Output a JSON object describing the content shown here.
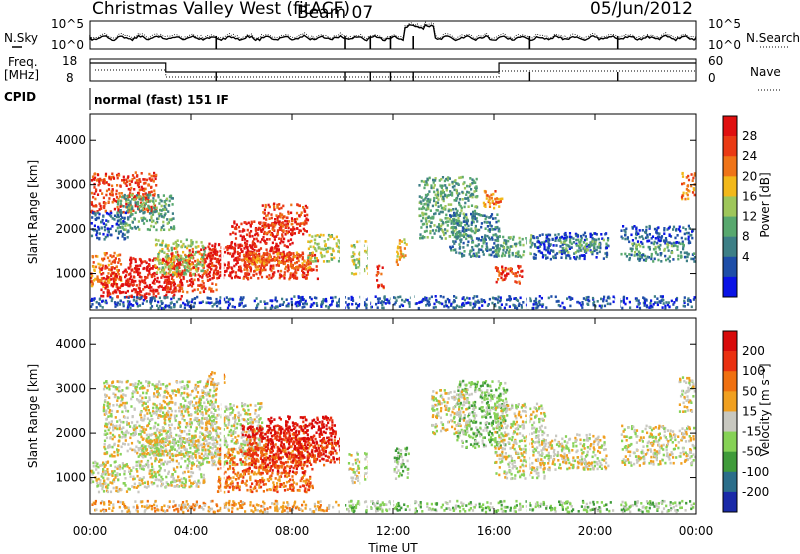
{
  "header": {
    "title": "Christmas Valley West (fitACF)",
    "beam": "Beam 07",
    "date": "05/Jun/2012"
  },
  "top_panels": {
    "nsky_label": "N.Sky",
    "nsky_ticks": [
      "10^5",
      "10^0"
    ],
    "nsearch_label": "N.Search",
    "nsearch_ticks": [
      "10^5",
      "10^0"
    ],
    "freq_label_1": "Freq.",
    "freq_label_2": "[MHz]",
    "freq_ticks": [
      "18",
      "8"
    ],
    "nave_label": "Nave",
    "nave_ticks": [
      "60",
      "0"
    ],
    "cpid_label": "CPID",
    "cpid_text": "normal (fast) 151 IF"
  },
  "colors": {
    "power_scale": [
      "#0a14e6",
      "#1e4ea8",
      "#3d7f86",
      "#58a86e",
      "#9ec65a",
      "#f2b81a",
      "#ef7418",
      "#ea3a14",
      "#e01010"
    ],
    "velocity_scale": [
      "#1a2aa8",
      "#2b6e8a",
      "#3f9b3a",
      "#86d256",
      "#c8c8c0",
      "#f0a020",
      "#ef7010",
      "#ea3010",
      "#d80a0a"
    ]
  },
  "chart_data": [
    {
      "type": "heatmap",
      "title": "Power",
      "xlabel": "",
      "ylabel": "Slant Range [km]",
      "x_ticks": [
        "00:00",
        "04:00",
        "08:00",
        "12:00",
        "16:00",
        "20:00",
        "00:00"
      ],
      "xlim_hours": [
        0,
        24
      ],
      "y_ticks": [
        1000,
        2000,
        3000,
        4000
      ],
      "ylim": [
        180,
        4590
      ],
      "colorbar_label": "Power [dB]",
      "colorbar_ticks": [
        "4",
        "8",
        "12",
        "16",
        "20",
        "24",
        "28"
      ],
      "colorbar_range": [
        0,
        30
      ]
    },
    {
      "type": "heatmap",
      "title": "Velocity",
      "xlabel": "Time UT",
      "ylabel": "Slant Range [km]",
      "x_ticks": [
        "00:00",
        "04:00",
        "08:00",
        "12:00",
        "16:00",
        "20:00",
        "00:00"
      ],
      "xlim_hours": [
        0,
        24
      ],
      "y_ticks": [
        1000,
        2000,
        3000,
        4000
      ],
      "ylim": [
        180,
        4590
      ],
      "colorbar_label": "Velocity [m s⁻¹]",
      "colorbar_ticks": [
        "200",
        "100",
        "50",
        "15",
        "-15",
        "-50",
        "-100",
        "-200"
      ],
      "colorbar_range": [
        -250,
        250
      ]
    }
  ]
}
